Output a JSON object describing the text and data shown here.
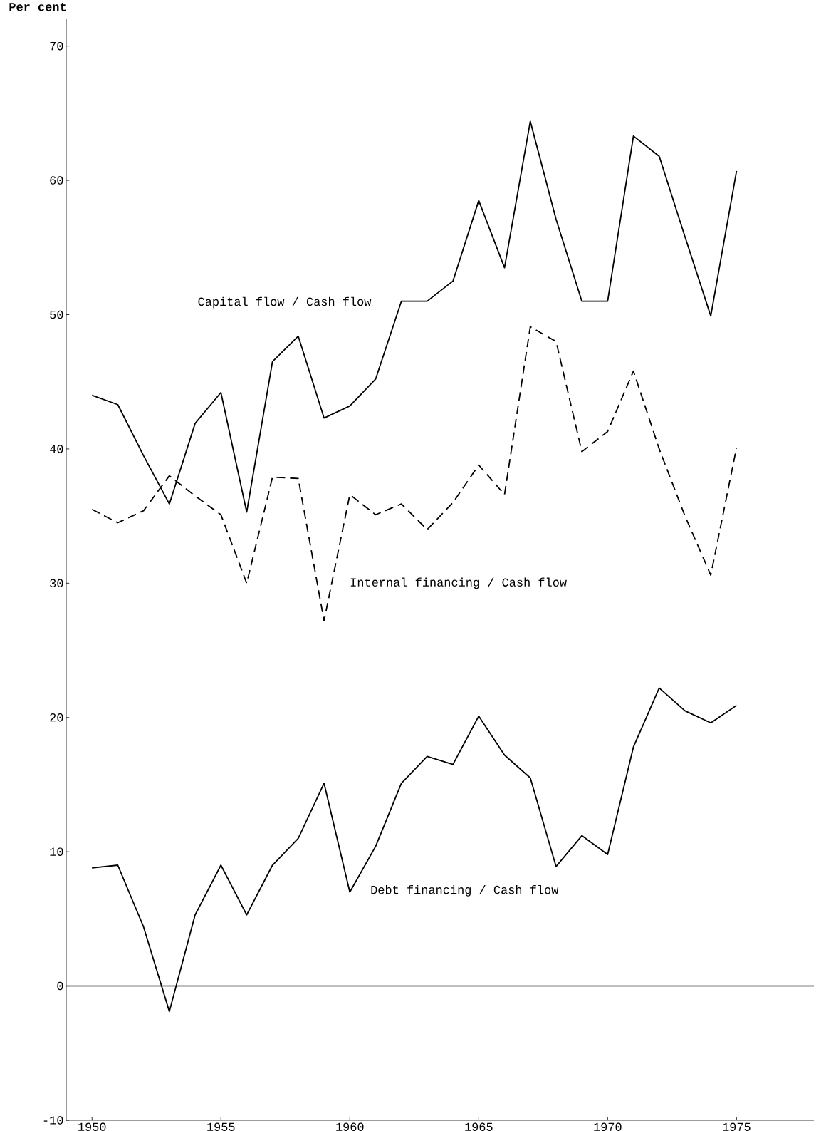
{
  "chart_data": {
    "type": "line",
    "ylabel": "Per cent",
    "x": [
      1950,
      1951,
      1952,
      1953,
      1954,
      1955,
      1956,
      1957,
      1958,
      1959,
      1960,
      1961,
      1962,
      1963,
      1964,
      1965,
      1966,
      1967,
      1968,
      1969,
      1970,
      1971,
      1972,
      1973,
      1974,
      1975
    ],
    "series": [
      {
        "name": "Capital flow / Cash flow",
        "color": "#000000",
        "line_style": "solid",
        "values": [
          44.0,
          43.3,
          39.5,
          35.9,
          41.9,
          44.2,
          35.3,
          46.5,
          48.4,
          42.3,
          43.2,
          45.2,
          51.0,
          51.0,
          52.5,
          58.5,
          53.5,
          64.4,
          57.1,
          51.0,
          51.0,
          63.3,
          61.8,
          55.8,
          49.9,
          60.7
        ]
      },
      {
        "name": "Internal financing / Cash flow",
        "color": "#000000",
        "line_style": "dashed",
        "values": [
          35.5,
          34.5,
          35.4,
          38.0,
          36.5,
          35.1,
          30.0,
          37.9,
          37.8,
          27.2,
          36.6,
          35.1,
          35.9,
          34.0,
          36.0,
          38.8,
          36.6,
          49.1,
          48.0,
          39.8,
          41.3,
          45.8,
          40.0,
          35.0,
          30.6,
          40.1
        ]
      },
      {
        "name": "Debt financing / Cash flow",
        "color": "#000000",
        "line_style": "solid",
        "values": [
          8.8,
          9.0,
          4.4,
          -1.9,
          5.3,
          9.0,
          5.3,
          9.0,
          11.0,
          15.1,
          7.0,
          10.4,
          15.1,
          17.1,
          16.5,
          20.1,
          17.2,
          15.5,
          8.9,
          11.2,
          9.8,
          17.8,
          22.2,
          20.5,
          19.6,
          20.9
        ]
      }
    ],
    "xlim": [
      1949,
      1978
    ],
    "ylim": [
      -10,
      72
    ],
    "xticks": [
      1950,
      1955,
      1960,
      1965,
      1970,
      1975
    ],
    "yticks": [
      -10,
      0,
      10,
      20,
      30,
      40,
      50,
      60,
      70
    ],
    "ref_lines": [
      {
        "axis": "y",
        "value": 0,
        "color": "#000000"
      }
    ],
    "grid": false,
    "marker": "none"
  }
}
